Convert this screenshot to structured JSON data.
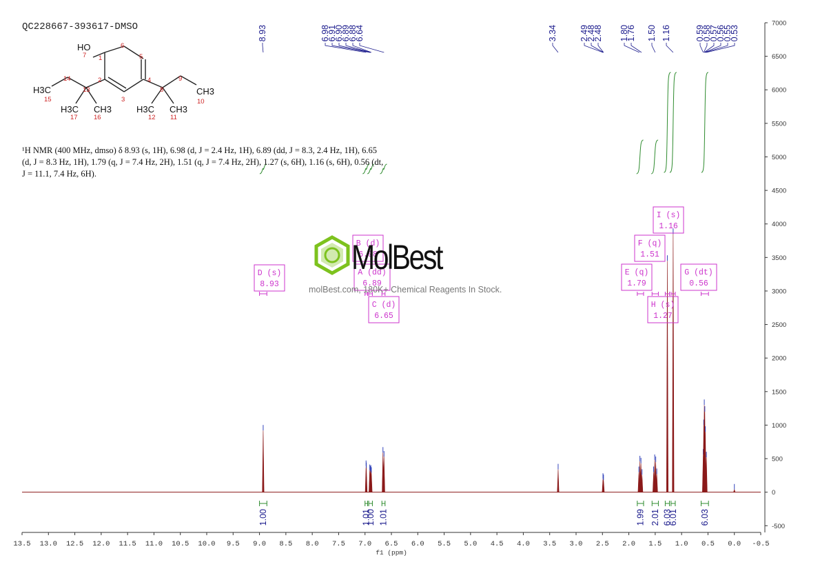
{
  "sample_id": "QC228667-393617-DMSO",
  "description": {
    "line1": "¹H NMR (400 MHz, dmso) δ 8.93 (s, 1H), 6.98 (d, J = 2.4 Hz, 1H), 6.89 (dd, J = 8.3, 2.4 Hz, 1H), 6.65",
    "line2": "(d, J = 8.3 Hz, 1H), 1.79 (q, J = 7.4 Hz, 2H), 1.51 (q, J = 7.4 Hz, 2H), 1.27 (s, 6H), 1.16 (s, 6H), 0.56 (dt,",
    "line3": "J = 11.1, 7.4 Hz, 6H)."
  },
  "watermark": {
    "brand": "MolBest",
    "tagline": "molBest.com, 180K+ Chemical Reagents In Stock."
  },
  "molecule": {
    "labels": {
      "oh": "HO",
      "ch3_a": "CH3",
      "h3c_a": "H3C",
      "ch3_b": "CH3",
      "h3c_b": "H3C",
      "ch3_c": "CH3",
      "h3c_c": "H3C",
      "n1": "1",
      "n2": "2",
      "n3": "3",
      "n4": "4",
      "n5": "5",
      "n6": "6",
      "n7": "7",
      "n8": "8",
      "n9": "9",
      "n10": "10",
      "n11": "11",
      "n12": "12",
      "n13": "13",
      "n14": "14",
      "n15": "15",
      "n16": "16",
      "n17": "17"
    }
  },
  "colors": {
    "spectrum": "#8b1a1a",
    "peak_label": "#1a1a8c",
    "integral": "#2e8b2e",
    "annotation": "#cc33cc",
    "axis": "#333333",
    "atom_number": "#cc2222",
    "watermark_green": "#7dc21e"
  },
  "chart_data": {
    "type": "line",
    "xlabel": "f1 (ppm)",
    "x_range": [
      13.5,
      -0.5
    ],
    "y_range": [
      -600,
      7000
    ],
    "x_ticks": [
      "13.5",
      "13.0",
      "12.5",
      "12.0",
      "11.5",
      "11.0",
      "10.5",
      "10.0",
      "9.5",
      "9.0",
      "8.5",
      "8.0",
      "7.5",
      "7.0",
      "6.5",
      "6.0",
      "5.5",
      "5.0",
      "4.5",
      "4.0",
      "3.5",
      "3.0",
      "2.5",
      "2.0",
      "1.5",
      "1.0",
      "0.5",
      "0.0",
      "-0.5"
    ],
    "y_ticks": [
      "-500",
      "0",
      "500",
      "1000",
      "1500",
      "2000",
      "2500",
      "3000",
      "3500",
      "4000",
      "4500",
      "5000",
      "5500",
      "6000",
      "6500",
      "7000"
    ],
    "peak_labels": [
      "8.93",
      "6.98",
      "6.91",
      "6.90",
      "6.89",
      "6.88",
      "6.64",
      "3.34",
      "2.49",
      "2.48",
      "2.48",
      "1.80",
      "1.76",
      "1.50",
      "1.16",
      "0.59",
      "0.58",
      "0.57",
      "0.56",
      "0.55",
      "0.53"
    ],
    "peaks": [
      {
        "ppm": 8.93,
        "height": 920
      },
      {
        "ppm": 6.98,
        "height": 390
      },
      {
        "ppm": 6.975,
        "height": 360
      },
      {
        "ppm": 6.91,
        "height": 330
      },
      {
        "ppm": 6.9,
        "height": 310
      },
      {
        "ppm": 6.89,
        "height": 320
      },
      {
        "ppm": 6.88,
        "height": 290
      },
      {
        "ppm": 6.66,
        "height": 590
      },
      {
        "ppm": 6.64,
        "height": 530
      },
      {
        "ppm": 3.34,
        "height": 340
      },
      {
        "ppm": 2.49,
        "height": 200
      },
      {
        "ppm": 2.48,
        "height": 180
      },
      {
        "ppm": 1.81,
        "height": 300
      },
      {
        "ppm": 1.79,
        "height": 460
      },
      {
        "ppm": 1.77,
        "height": 430
      },
      {
        "ppm": 1.75,
        "height": 260
      },
      {
        "ppm": 1.53,
        "height": 300
      },
      {
        "ppm": 1.51,
        "height": 480
      },
      {
        "ppm": 1.49,
        "height": 450
      },
      {
        "ppm": 1.47,
        "height": 270
      },
      {
        "ppm": 1.27,
        "height": 3450
      },
      {
        "ppm": 1.16,
        "height": 3850
      },
      {
        "ppm": 0.59,
        "height": 560
      },
      {
        "ppm": 0.58,
        "height": 1000
      },
      {
        "ppm": 0.57,
        "height": 1300
      },
      {
        "ppm": 0.56,
        "height": 1200
      },
      {
        "ppm": 0.55,
        "height": 900
      },
      {
        "ppm": 0.53,
        "height": 520
      },
      {
        "ppm": 0.0,
        "height": 40
      }
    ],
    "multiplets": [
      {
        "letter": "D (s)",
        "value": "8.93",
        "from": 9.0,
        "to": 8.86
      },
      {
        "letter": "B (d)",
        "value": "6.98",
        "from": 7.0,
        "to": 6.95
      },
      {
        "letter": "A (dd)",
        "value": "6.89",
        "from": 6.93,
        "to": 6.86
      },
      {
        "letter": "C (d)",
        "value": "6.65",
        "from": 6.68,
        "to": 6.62
      },
      {
        "letter": "E (q)",
        "value": "1.79",
        "from": 1.84,
        "to": 1.72
      },
      {
        "letter": "F (q)",
        "value": "1.51",
        "from": 1.56,
        "to": 1.44
      },
      {
        "letter": "H (s)",
        "value": "1.27",
        "from": 1.31,
        "to": 1.23
      },
      {
        "letter": "I (s)",
        "value": "1.16",
        "from": 1.2,
        "to": 1.12
      },
      {
        "letter": "G (dt)",
        "value": "0.56",
        "from": 0.63,
        "to": 0.49
      }
    ],
    "integrals": [
      {
        "value": "1.00",
        "from": 9.0,
        "to": 8.86
      },
      {
        "value": "1.01",
        "from": 7.0,
        "to": 6.95
      },
      {
        "value": "1.00",
        "from": 6.93,
        "to": 6.86
      },
      {
        "value": "1.01",
        "from": 6.68,
        "to": 6.62
      },
      {
        "value": "1.99",
        "from": 1.84,
        "to": 1.72
      },
      {
        "value": "2.01",
        "from": 1.56,
        "to": 1.44
      },
      {
        "value": "6.03",
        "from": 1.31,
        "to": 1.23
      },
      {
        "value": "6.01",
        "from": 1.2,
        "to": 1.12
      },
      {
        "value": "6.03",
        "from": 0.63,
        "to": 0.49
      }
    ]
  }
}
